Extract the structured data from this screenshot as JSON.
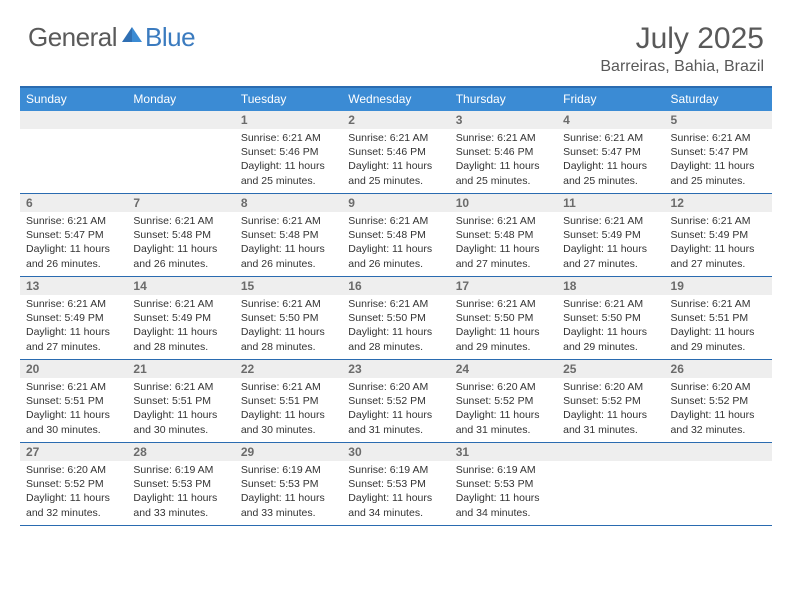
{
  "brand": {
    "word1": "General",
    "word2": "Blue"
  },
  "title": "July 2025",
  "location": "Barreiras, Bahia, Brazil",
  "colors": {
    "header_bar": "#3b8bd4",
    "header_border": "#2a6bb0",
    "daynum_bg": "#eeeeee",
    "text_gray": "#595959",
    "brand_blue": "#3b7bbf"
  },
  "day_headers": [
    "Sunday",
    "Monday",
    "Tuesday",
    "Wednesday",
    "Thursday",
    "Friday",
    "Saturday"
  ],
  "weeks": [
    [
      {
        "n": "",
        "lines": []
      },
      {
        "n": "",
        "lines": []
      },
      {
        "n": "1",
        "lines": [
          "Sunrise: 6:21 AM",
          "Sunset: 5:46 PM",
          "Daylight: 11 hours and 25 minutes."
        ]
      },
      {
        "n": "2",
        "lines": [
          "Sunrise: 6:21 AM",
          "Sunset: 5:46 PM",
          "Daylight: 11 hours and 25 minutes."
        ]
      },
      {
        "n": "3",
        "lines": [
          "Sunrise: 6:21 AM",
          "Sunset: 5:46 PM",
          "Daylight: 11 hours and 25 minutes."
        ]
      },
      {
        "n": "4",
        "lines": [
          "Sunrise: 6:21 AM",
          "Sunset: 5:47 PM",
          "Daylight: 11 hours and 25 minutes."
        ]
      },
      {
        "n": "5",
        "lines": [
          "Sunrise: 6:21 AM",
          "Sunset: 5:47 PM",
          "Daylight: 11 hours and 25 minutes."
        ]
      }
    ],
    [
      {
        "n": "6",
        "lines": [
          "Sunrise: 6:21 AM",
          "Sunset: 5:47 PM",
          "Daylight: 11 hours and 26 minutes."
        ]
      },
      {
        "n": "7",
        "lines": [
          "Sunrise: 6:21 AM",
          "Sunset: 5:48 PM",
          "Daylight: 11 hours and 26 minutes."
        ]
      },
      {
        "n": "8",
        "lines": [
          "Sunrise: 6:21 AM",
          "Sunset: 5:48 PM",
          "Daylight: 11 hours and 26 minutes."
        ]
      },
      {
        "n": "9",
        "lines": [
          "Sunrise: 6:21 AM",
          "Sunset: 5:48 PM",
          "Daylight: 11 hours and 26 minutes."
        ]
      },
      {
        "n": "10",
        "lines": [
          "Sunrise: 6:21 AM",
          "Sunset: 5:48 PM",
          "Daylight: 11 hours and 27 minutes."
        ]
      },
      {
        "n": "11",
        "lines": [
          "Sunrise: 6:21 AM",
          "Sunset: 5:49 PM",
          "Daylight: 11 hours and 27 minutes."
        ]
      },
      {
        "n": "12",
        "lines": [
          "Sunrise: 6:21 AM",
          "Sunset: 5:49 PM",
          "Daylight: 11 hours and 27 minutes."
        ]
      }
    ],
    [
      {
        "n": "13",
        "lines": [
          "Sunrise: 6:21 AM",
          "Sunset: 5:49 PM",
          "Daylight: 11 hours and 27 minutes."
        ]
      },
      {
        "n": "14",
        "lines": [
          "Sunrise: 6:21 AM",
          "Sunset: 5:49 PM",
          "Daylight: 11 hours and 28 minutes."
        ]
      },
      {
        "n": "15",
        "lines": [
          "Sunrise: 6:21 AM",
          "Sunset: 5:50 PM",
          "Daylight: 11 hours and 28 minutes."
        ]
      },
      {
        "n": "16",
        "lines": [
          "Sunrise: 6:21 AM",
          "Sunset: 5:50 PM",
          "Daylight: 11 hours and 28 minutes."
        ]
      },
      {
        "n": "17",
        "lines": [
          "Sunrise: 6:21 AM",
          "Sunset: 5:50 PM",
          "Daylight: 11 hours and 29 minutes."
        ]
      },
      {
        "n": "18",
        "lines": [
          "Sunrise: 6:21 AM",
          "Sunset: 5:50 PM",
          "Daylight: 11 hours and 29 minutes."
        ]
      },
      {
        "n": "19",
        "lines": [
          "Sunrise: 6:21 AM",
          "Sunset: 5:51 PM",
          "Daylight: 11 hours and 29 minutes."
        ]
      }
    ],
    [
      {
        "n": "20",
        "lines": [
          "Sunrise: 6:21 AM",
          "Sunset: 5:51 PM",
          "Daylight: 11 hours and 30 minutes."
        ]
      },
      {
        "n": "21",
        "lines": [
          "Sunrise: 6:21 AM",
          "Sunset: 5:51 PM",
          "Daylight: 11 hours and 30 minutes."
        ]
      },
      {
        "n": "22",
        "lines": [
          "Sunrise: 6:21 AM",
          "Sunset: 5:51 PM",
          "Daylight: 11 hours and 30 minutes."
        ]
      },
      {
        "n": "23",
        "lines": [
          "Sunrise: 6:20 AM",
          "Sunset: 5:52 PM",
          "Daylight: 11 hours and 31 minutes."
        ]
      },
      {
        "n": "24",
        "lines": [
          "Sunrise: 6:20 AM",
          "Sunset: 5:52 PM",
          "Daylight: 11 hours and 31 minutes."
        ]
      },
      {
        "n": "25",
        "lines": [
          "Sunrise: 6:20 AM",
          "Sunset: 5:52 PM",
          "Daylight: 11 hours and 31 minutes."
        ]
      },
      {
        "n": "26",
        "lines": [
          "Sunrise: 6:20 AM",
          "Sunset: 5:52 PM",
          "Daylight: 11 hours and 32 minutes."
        ]
      }
    ],
    [
      {
        "n": "27",
        "lines": [
          "Sunrise: 6:20 AM",
          "Sunset: 5:52 PM",
          "Daylight: 11 hours and 32 minutes."
        ]
      },
      {
        "n": "28",
        "lines": [
          "Sunrise: 6:19 AM",
          "Sunset: 5:53 PM",
          "Daylight: 11 hours and 33 minutes."
        ]
      },
      {
        "n": "29",
        "lines": [
          "Sunrise: 6:19 AM",
          "Sunset: 5:53 PM",
          "Daylight: 11 hours and 33 minutes."
        ]
      },
      {
        "n": "30",
        "lines": [
          "Sunrise: 6:19 AM",
          "Sunset: 5:53 PM",
          "Daylight: 11 hours and 34 minutes."
        ]
      },
      {
        "n": "31",
        "lines": [
          "Sunrise: 6:19 AM",
          "Sunset: 5:53 PM",
          "Daylight: 11 hours and 34 minutes."
        ]
      },
      {
        "n": "",
        "lines": []
      },
      {
        "n": "",
        "lines": []
      }
    ]
  ]
}
